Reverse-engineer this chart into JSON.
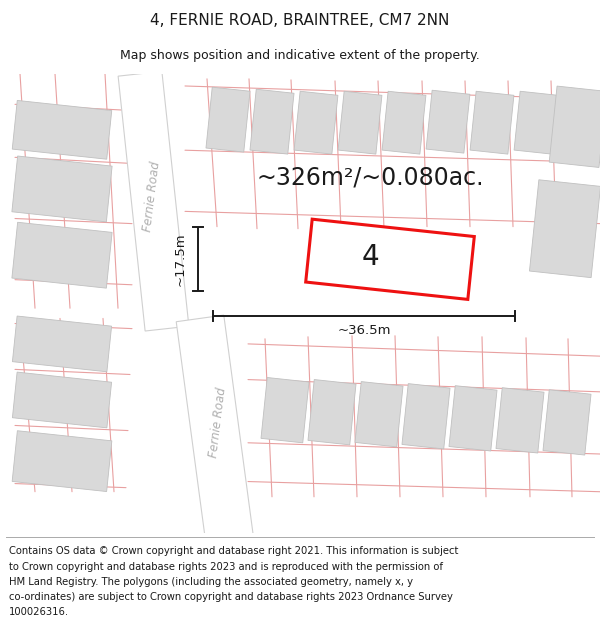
{
  "title": "4, FERNIE ROAD, BRAINTREE, CM7 2NN",
  "subtitle": "Map shows position and indicative extent of the property.",
  "area_label": "~326m²/~0.080ac.",
  "plot_number": "4",
  "dim_width": "~36.5m",
  "dim_height": "~17.5m",
  "road_label_top": "Fernie Road",
  "road_label_bottom": "Fernie Road",
  "footer_lines": [
    "Contains OS data © Crown copyright and database right 2021. This information is subject",
    "to Crown copyright and database rights 2023 and is reproduced with the permission of",
    "HM Land Registry. The polygons (including the associated geometry, namely x, y",
    "co-ordinates) are subject to Crown copyright and database rights 2023 Ordnance Survey",
    "100026316."
  ],
  "background_color": "#ffffff",
  "map_bg": "#f2f0f0",
  "building_fill": "#d9d9d9",
  "building_edge": "#c0c0c0",
  "road_fill": "#ffffff",
  "road_edge": "#d0d0d0",
  "red_line_color": "#ee1111",
  "pink_line_color": "#e8a0a0",
  "dim_line_color": "#1a1a1a",
  "title_color": "#1a1a1a",
  "footer_color": "#1a1a1a",
  "title_fontsize": 11,
  "subtitle_fontsize": 9,
  "area_fontsize": 17,
  "plot_num_fontsize": 20,
  "footer_fontsize": 7.2,
  "dim_fontsize": 9.5,
  "road_label_fontsize": 8.5
}
